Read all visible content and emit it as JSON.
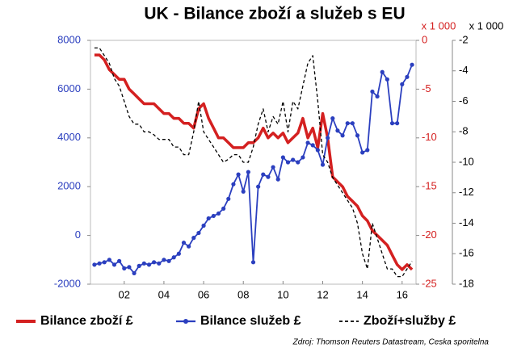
{
  "chart_data": {
    "type": "line",
    "title": "UK - Bilance zboží a služeb s EU",
    "y2label": "x 1 000",
    "y3label": "x 1 000",
    "source": "Zdroj: Thomson Reuters Datastream, Ceska sporitelna",
    "x": [
      2000.5,
      2000.75,
      2001,
      2001.25,
      2001.5,
      2001.75,
      2002,
      2002.25,
      2002.5,
      2002.75,
      2003,
      2003.25,
      2003.5,
      2003.75,
      2004,
      2004.25,
      2004.5,
      2004.75,
      2005,
      2005.25,
      2005.5,
      2005.75,
      2006,
      2006.25,
      2006.5,
      2006.75,
      2007,
      2007.25,
      2007.5,
      2007.75,
      2008,
      2008.25,
      2008.5,
      2008.75,
      2009,
      2009.25,
      2009.5,
      2009.75,
      2010,
      2010.25,
      2010.5,
      2010.75,
      2011,
      2011.25,
      2011.5,
      2011.75,
      2012,
      2012.25,
      2012.5,
      2012.75,
      2013,
      2013.25,
      2013.5,
      2013.75,
      2014,
      2014.25,
      2014.5,
      2014.75,
      2015,
      2015.25,
      2015.5,
      2015.75,
      2016,
      2016.25,
      2016.5
    ],
    "xlim": [
      2000.3,
      2016.7
    ],
    "xticks": [
      {
        "value": 2002,
        "label": "02"
      },
      {
        "value": 2004,
        "label": "04"
      },
      {
        "value": 2006,
        "label": "06"
      },
      {
        "value": 2008,
        "label": "08"
      },
      {
        "value": 2010,
        "label": "10"
      },
      {
        "value": 2012,
        "label": "12"
      },
      {
        "value": 2014,
        "label": "14"
      },
      {
        "value": 2016,
        "label": "16"
      }
    ],
    "ylim": [
      -2000,
      8000
    ],
    "yticks": [
      -2000,
      0,
      2000,
      4000,
      6000,
      8000
    ],
    "ycolor": "#2b3fbf",
    "y2lim": [
      -25,
      0
    ],
    "y2ticks": [
      -25,
      -20,
      -15,
      -10,
      -5,
      0
    ],
    "y2color": "#d42020",
    "y3lim": [
      -18,
      -2
    ],
    "y3ticks": [
      -18,
      -16,
      -14,
      -12,
      -10,
      -8,
      -6,
      -4,
      -2
    ],
    "y3color": "#000000",
    "series": [
      {
        "name": "Bilance zboží £",
        "color": "#d42020",
        "axis": "y2",
        "width": 3.5,
        "values": [
          -1.5,
          -1.5,
          -2,
          -3,
          -3.5,
          -4,
          -4,
          -5,
          -5.5,
          -6,
          -6.5,
          -6.5,
          -6.5,
          -7,
          -7.5,
          -7.5,
          -8,
          -8,
          -8.5,
          -8.5,
          -9,
          -7,
          -6.5,
          -8,
          -9,
          -10,
          -10,
          -10.5,
          -11,
          -11,
          -11,
          -10.5,
          -10.5,
          -10,
          -9,
          -10,
          -9.5,
          -10,
          -9.5,
          -10.5,
          -10,
          -9.5,
          -8,
          -10,
          -9,
          -11,
          -7.5,
          -10,
          -14,
          -14.5,
          -15,
          -16,
          -16.5,
          -17,
          -18,
          -18.5,
          -19.5,
          -20,
          -20.5,
          -21,
          -22,
          -23,
          -23.5,
          -23,
          -23.5
        ]
      },
      {
        "name": "Bilance služeb £",
        "color": "#2b3fbf",
        "axis": "y",
        "width": 1.8,
        "marker": "circle",
        "values": [
          -1200,
          -1150,
          -1100,
          -1000,
          -1200,
          -1050,
          -1350,
          -1300,
          -1550,
          -1250,
          -1150,
          -1200,
          -1100,
          -1150,
          -1000,
          -1050,
          -900,
          -750,
          -300,
          -450,
          -100,
          100,
          400,
          700,
          800,
          900,
          1100,
          1500,
          2100,
          2500,
          1800,
          2600,
          -1100,
          2000,
          2500,
          2400,
          2800,
          2300,
          3200,
          3000,
          3100,
          3000,
          3200,
          3800,
          3700,
          3500,
          2900,
          4000,
          4800,
          4300,
          4100,
          4600,
          4600,
          4100,
          3400,
          3500,
          5900,
          5700,
          6700,
          6400,
          4600,
          4600,
          6200,
          6500,
          7000
        ]
      },
      {
        "name": "Zboží+služby £",
        "color": "#000000",
        "axis": "y3",
        "width": 1.3,
        "dash": "4,3",
        "values": [
          -2.5,
          -2.5,
          -3,
          -3.5,
          -4.5,
          -5,
          -6,
          -7,
          -7.5,
          -7.5,
          -8,
          -8,
          -8.2,
          -8.5,
          -8.5,
          -8.5,
          -9,
          -9,
          -9.5,
          -9.5,
          -8,
          -6,
          -8,
          -8.5,
          -9,
          -9.5,
          -10,
          -9.8,
          -9.5,
          -9.5,
          -10,
          -10,
          -9,
          -7.5,
          -6.5,
          -8,
          -7,
          -7.5,
          -6,
          -8,
          -6,
          -6.5,
          -5,
          -3.5,
          -3,
          -6,
          -9.5,
          -10,
          -11,
          -11.5,
          -12,
          -12.5,
          -13,
          -14,
          -16,
          -17,
          -14,
          -15,
          -16,
          -17,
          -17,
          -17.5,
          -17.5,
          -17,
          -16.5
        ]
      }
    ]
  }
}
